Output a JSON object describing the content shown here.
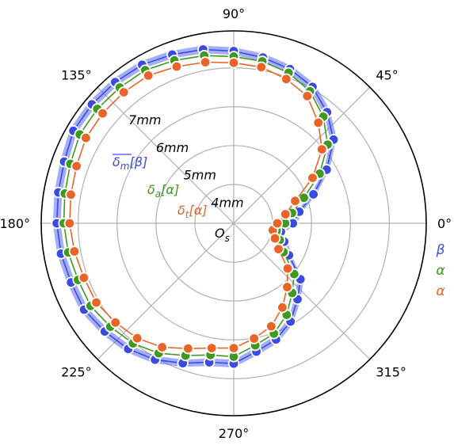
{
  "chart_data": {
    "type": "polar-line",
    "angle_ticks": [
      {
        "deg": 0,
        "label": "0°"
      },
      {
        "deg": 45,
        "label": "45°"
      },
      {
        "deg": 90,
        "label": "90°"
      },
      {
        "deg": 135,
        "label": "135°"
      },
      {
        "deg": 180,
        "label": "180°"
      },
      {
        "deg": 225,
        "label": "225°"
      },
      {
        "deg": 270,
        "label": "270°"
      },
      {
        "deg": 315,
        "label": "315°"
      }
    ],
    "radial_ticks": [
      {
        "value": 4,
        "label": "4mm"
      },
      {
        "value": 5,
        "label": "5mm"
      },
      {
        "value": 6,
        "label": "6mm"
      },
      {
        "value": 7,
        "label": "7mm"
      }
    ],
    "rlim": [
      3,
      7.95
    ],
    "origin_label": "O",
    "origin_sub": "s",
    "band": {
      "color": "#5a6cf0",
      "min_offset": -0.1,
      "max_offset": 0.1
    },
    "series_labels": [
      {
        "key": "beta",
        "base": "δ",
        "sub": "m",
        "bracket": "[β]",
        "overline": true,
        "color": "#3a4be0"
      },
      {
        "key": "alpha_a",
        "base": "δ",
        "sub": "a",
        "bracket": "[α]",
        "overline": false,
        "color": "#3d9a1f"
      },
      {
        "key": "alpha_t",
        "base": "δ",
        "sub": "t",
        "bracket": "[α]",
        "overline": false,
        "color": "#ea6428"
      }
    ],
    "legend": [
      {
        "label": "β",
        "color": "#3a4be0"
      },
      {
        "label": "α",
        "color": "#3d9a1f"
      },
      {
        "label": "α",
        "color": "#ea6428"
      }
    ],
    "theta": [
      350,
      360,
      10,
      20,
      30,
      40,
      50,
      60,
      70,
      80,
      90,
      100,
      110,
      120,
      130,
      140,
      150,
      160,
      170,
      180,
      190,
      200,
      210,
      220,
      230,
      240,
      250,
      260,
      270,
      280,
      290,
      300,
      310,
      320,
      330,
      340
    ],
    "series": [
      {
        "name": "β",
        "color": "#3a4be0",
        "values": [
          4.23,
          4.52,
          4.71,
          5.18,
          5.76,
          6.35,
          6.73,
          7.05,
          7.22,
          7.33,
          7.43,
          7.54,
          7.62,
          7.71,
          7.74,
          7.76,
          7.76,
          7.64,
          7.58,
          7.55,
          7.51,
          7.45,
          7.44,
          7.33,
          7.22,
          7.05,
          6.83,
          6.63,
          6.61,
          6.35,
          6.18,
          5.92,
          5.55,
          5.24,
          4.64,
          4.38
        ]
      },
      {
        "name": "α",
        "color": "#3d9a1f",
        "values": [
          4.12,
          4.32,
          4.52,
          4.92,
          5.55,
          6.15,
          6.58,
          6.92,
          7.12,
          7.23,
          7.29,
          7.38,
          7.46,
          7.55,
          7.56,
          7.58,
          7.57,
          7.47,
          7.41,
          7.37,
          7.32,
          7.26,
          7.25,
          7.14,
          7.03,
          6.86,
          6.62,
          6.44,
          6.43,
          6.19,
          6.02,
          5.72,
          5.34,
          5.03,
          4.48,
          4.26
        ]
      },
      {
        "name": "α",
        "color": "#ea6428",
        "values": [
          4.02,
          4.12,
          4.35,
          4.68,
          5.34,
          5.96,
          6.38,
          6.78,
          6.95,
          7.08,
          7.13,
          7.21,
          7.29,
          7.39,
          7.4,
          7.4,
          7.39,
          7.3,
          7.25,
          7.22,
          7.16,
          7.1,
          7.08,
          6.97,
          6.86,
          6.68,
          6.43,
          6.26,
          6.21,
          6.01,
          5.82,
          5.5,
          5.14,
          4.81,
          4.33,
          4.13
        ]
      }
    ]
  }
}
